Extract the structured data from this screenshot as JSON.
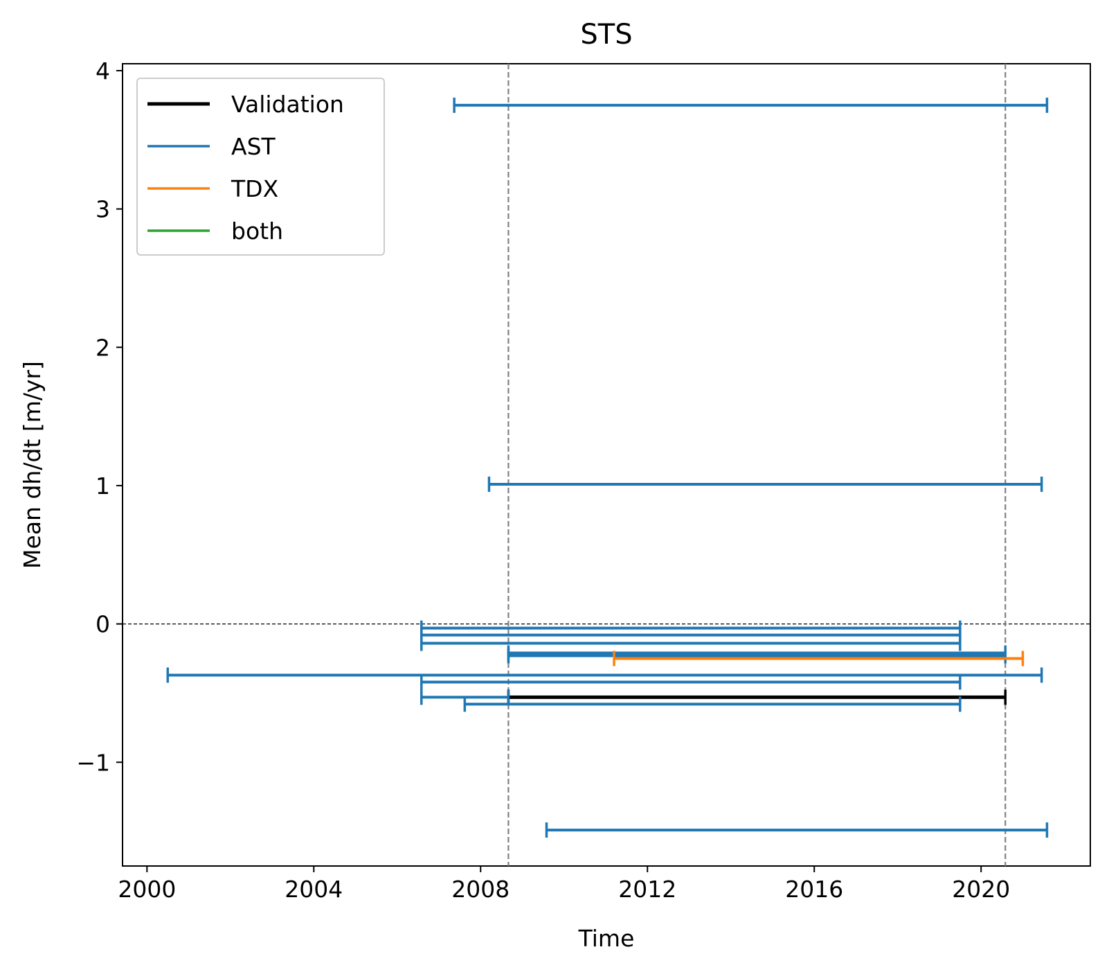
{
  "chart_data": {
    "type": "interval",
    "title": "STS",
    "xlabel": "Time",
    "ylabel": "Mean dh/dt [m/yr]",
    "x_axis_type": "date",
    "xlim": [
      "1999-06-01",
      "2022-08-15"
    ],
    "ylim": [
      -1.75,
      4.05
    ],
    "xticks": [
      "2000",
      "2004",
      "2008",
      "2012",
      "2016",
      "2020"
    ],
    "yticks": [
      -1,
      0,
      1,
      2,
      3,
      4
    ],
    "ytick_labels": [
      "−1",
      "0",
      "1",
      "2",
      "3",
      "4"
    ],
    "grid": false,
    "legend_position": "upper left",
    "zero_line": {
      "y": 0,
      "style": "dashed",
      "color": "#000000"
    },
    "vertical_lines": [
      {
        "x": "2008-09-01",
        "style": "dashed",
        "color": "#808080"
      },
      {
        "x": "2020-08-01",
        "style": "dashed",
        "color": "#808080"
      }
    ],
    "series": [
      {
        "name": "Validation",
        "color": "#000000",
        "intervals": [
          {
            "start": "2008-09-01",
            "end": "2020-08-01",
            "value": -0.53
          }
        ]
      },
      {
        "name": "AST",
        "color": "#1f77b4",
        "intervals": [
          {
            "start": "2007-05-15",
            "end": "2021-08-01",
            "value": 3.75
          },
          {
            "start": "2008-03-15",
            "end": "2021-06-15",
            "value": 1.01
          },
          {
            "start": "2006-08-01",
            "end": "2019-07-01",
            "value": -0.03
          },
          {
            "start": "2006-08-01",
            "end": "2019-07-01",
            "value": -0.08
          },
          {
            "start": "2006-08-01",
            "end": "2019-07-01",
            "value": -0.14
          },
          {
            "start": "2008-09-01",
            "end": "2020-08-01",
            "value": -0.21
          },
          {
            "start": "2008-09-01",
            "end": "2020-08-01",
            "value": -0.23
          },
          {
            "start": "2000-07-01",
            "end": "2021-06-15",
            "value": -0.37
          },
          {
            "start": "2006-08-01",
            "end": "2019-07-01",
            "value": -0.42
          },
          {
            "start": "2006-08-01",
            "end": "2008-09-01",
            "value": -0.53
          },
          {
            "start": "2007-08-15",
            "end": "2019-07-01",
            "value": -0.58
          },
          {
            "start": "2009-08-01",
            "end": "2021-08-01",
            "value": -1.49
          }
        ]
      },
      {
        "name": "TDX",
        "color": "#ff7f0e",
        "intervals": [
          {
            "start": "2011-03-15",
            "end": "2021-01-01",
            "value": -0.25
          }
        ]
      },
      {
        "name": "both",
        "color": "#2ca02c",
        "intervals": []
      }
    ]
  }
}
